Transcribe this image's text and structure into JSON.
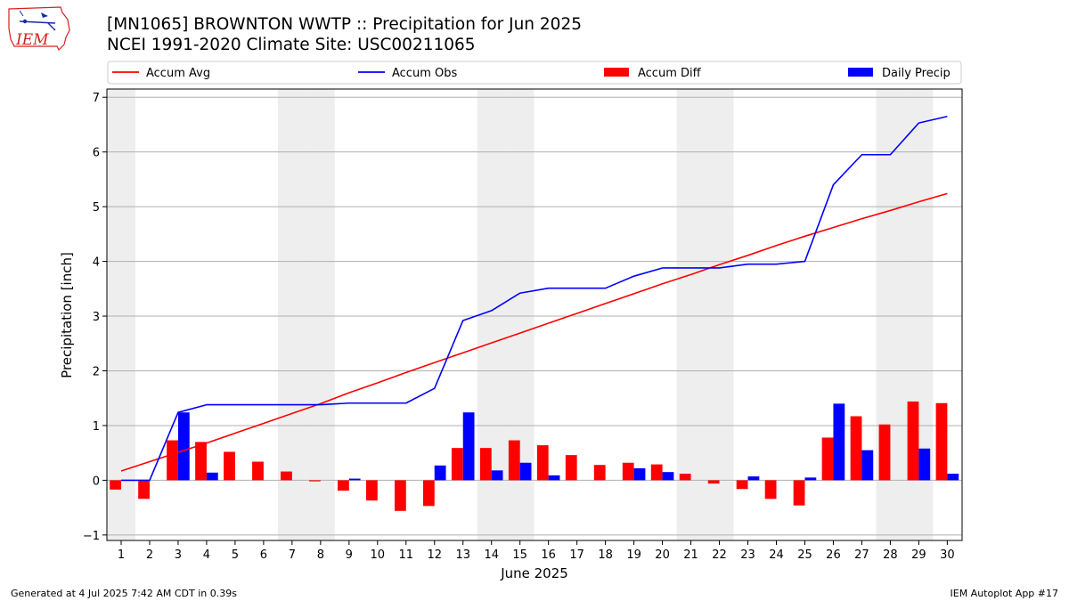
{
  "header": {
    "title": "[MN1065] BROWNTON WWTP :: Precipitation for Jun 2025",
    "subtitle": "NCEI 1991-2020 Climate Site: USC00211065"
  },
  "logo": {
    "text": "IEM",
    "color": "#d62020",
    "icon": "iowa-state-outline-icon"
  },
  "footer": {
    "generated": "Generated at 4 Jul 2025 7:42 AM CDT in 0.39s",
    "app": "IEM Autoplot App #17"
  },
  "chart_data": {
    "type": "bar",
    "xlabel": "June 2025",
    "ylabel": "Precipitation [inch]",
    "ylim": [
      -1.1,
      7.15
    ],
    "yticks": [
      -1,
      0,
      1,
      2,
      3,
      4,
      5,
      6,
      7
    ],
    "grid": "horizontal",
    "legend_position": "top",
    "weekend_shading": true,
    "weekend_shade_color": "#eeeeee",
    "colors": {
      "accum_avg": "#ff0000",
      "accum_obs": "#0000ff",
      "accum_diff": "#ff0000",
      "daily_precip": "#0000ff"
    },
    "shaded_days": [
      1,
      7,
      8,
      14,
      15,
      21,
      22,
      28,
      29
    ],
    "x": [
      1,
      2,
      3,
      4,
      5,
      6,
      7,
      8,
      9,
      10,
      11,
      12,
      13,
      14,
      15,
      16,
      17,
      18,
      19,
      20,
      21,
      22,
      23,
      24,
      25,
      26,
      27,
      28,
      29,
      30
    ],
    "legend": [
      {
        "name": "Accum Avg",
        "kind": "line",
        "color": "#ff0000"
      },
      {
        "name": "Accum Obs",
        "kind": "line",
        "color": "#0000ff"
      },
      {
        "name": "Accum Diff",
        "kind": "bar",
        "color": "#ff0000"
      },
      {
        "name": "Daily Precip",
        "kind": "bar",
        "color": "#0000ff"
      }
    ],
    "series": [
      {
        "name": "Accum Avg",
        "values": [
          0.17,
          0.34,
          0.51,
          0.68,
          0.86,
          1.04,
          1.22,
          1.4,
          1.6,
          1.78,
          1.97,
          2.15,
          2.33,
          2.51,
          2.69,
          2.87,
          3.05,
          3.23,
          3.41,
          3.59,
          3.76,
          3.94,
          4.11,
          4.29,
          4.46,
          4.62,
          4.78,
          4.93,
          5.09,
          5.24
        ]
      },
      {
        "name": "Accum Obs",
        "values": [
          0.0,
          0.0,
          1.24,
          1.38,
          1.38,
          1.38,
          1.38,
          1.38,
          1.41,
          1.41,
          1.41,
          1.68,
          2.92,
          3.1,
          3.42,
          3.51,
          3.51,
          3.51,
          3.73,
          3.88,
          3.88,
          3.88,
          3.95,
          3.95,
          4.0,
          5.4,
          5.95,
          5.95,
          6.53,
          6.65
        ]
      },
      {
        "name": "Accum Diff",
        "values": [
          -0.17,
          -0.34,
          0.73,
          0.7,
          0.52,
          0.34,
          0.16,
          -0.02,
          -0.19,
          -0.37,
          -0.56,
          -0.47,
          0.59,
          0.59,
          0.73,
          0.64,
          0.46,
          0.28,
          0.32,
          0.29,
          0.12,
          -0.06,
          -0.16,
          -0.34,
          -0.46,
          0.78,
          1.17,
          1.02,
          1.44,
          1.41
        ]
      },
      {
        "name": "Daily Precip",
        "values": [
          0.0,
          0.0,
          1.24,
          0.14,
          0.0,
          0.0,
          0.0,
          0.0,
          0.03,
          0.0,
          0.0,
          0.27,
          1.24,
          0.18,
          0.32,
          0.09,
          0.0,
          0.0,
          0.22,
          0.15,
          0.0,
          0.0,
          0.07,
          0.0,
          0.05,
          1.4,
          0.55,
          0.0,
          0.58,
          0.12
        ]
      }
    ]
  }
}
